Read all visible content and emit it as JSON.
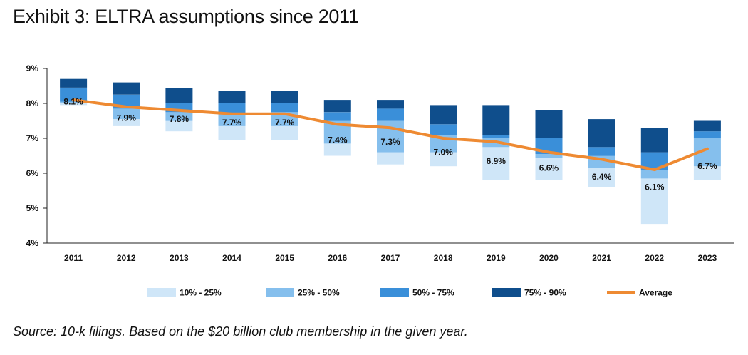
{
  "title": "Exhibit 3: ELTRA assumptions since 2011",
  "source": "Source: 10-k filings. Based on the $20 billion club membership in the given year.",
  "chart_data": {
    "type": "bar",
    "subtype": "stacked-percentile-range-with-line",
    "categories": [
      "2011",
      "2012",
      "2013",
      "2014",
      "2015",
      "2016",
      "2017",
      "2018",
      "2019",
      "2020",
      "2021",
      "2022",
      "2023"
    ],
    "series": [
      {
        "name": "10% - 25%",
        "color": "#cfe6f8",
        "range": [
          [
            7.95,
            8.0
          ],
          [
            7.35,
            7.55
          ],
          [
            7.2,
            7.5
          ],
          [
            6.95,
            7.35
          ],
          [
            6.95,
            7.35
          ],
          [
            6.5,
            6.85
          ],
          [
            6.25,
            6.6
          ],
          [
            6.2,
            6.6
          ],
          [
            5.8,
            6.75
          ],
          [
            5.8,
            6.45
          ],
          [
            5.6,
            6.15
          ],
          [
            4.55,
            5.85
          ],
          [
            5.8,
            6.2
          ]
        ]
      },
      {
        "name": "25% - 50%",
        "color": "#85bfed",
        "range": [
          [
            8.0,
            8.05
          ],
          [
            7.55,
            7.85
          ],
          [
            7.5,
            7.75
          ],
          [
            7.35,
            7.7
          ],
          [
            7.35,
            7.75
          ],
          [
            6.85,
            7.5
          ],
          [
            6.6,
            7.5
          ],
          [
            6.6,
            7.1
          ],
          [
            6.75,
            7.0
          ],
          [
            6.45,
            6.55
          ],
          [
            6.15,
            6.5
          ],
          [
            5.85,
            6.1
          ],
          [
            6.2,
            7.0
          ]
        ]
      },
      {
        "name": "50% - 75%",
        "color": "#3a8fd9",
        "range": [
          [
            8.05,
            8.45
          ],
          [
            7.85,
            8.25
          ],
          [
            7.75,
            8.0
          ],
          [
            7.7,
            8.0
          ],
          [
            7.75,
            8.0
          ],
          [
            7.5,
            7.75
          ],
          [
            7.5,
            7.85
          ],
          [
            7.1,
            7.4
          ],
          [
            7.0,
            7.1
          ],
          [
            6.55,
            7.0
          ],
          [
            6.5,
            6.75
          ],
          [
            6.1,
            6.6
          ],
          [
            7.0,
            7.2
          ]
        ]
      },
      {
        "name": "75% - 90%",
        "color": "#0f4e8c",
        "range": [
          [
            8.45,
            8.7
          ],
          [
            8.25,
            8.6
          ],
          [
            8.0,
            8.45
          ],
          [
            8.0,
            8.35
          ],
          [
            8.0,
            8.35
          ],
          [
            7.75,
            8.1
          ],
          [
            7.85,
            8.1
          ],
          [
            7.4,
            7.95
          ],
          [
            7.1,
            7.95
          ],
          [
            7.0,
            7.8
          ],
          [
            6.75,
            7.55
          ],
          [
            6.6,
            7.3
          ],
          [
            7.2,
            7.5
          ]
        ]
      }
    ],
    "average": {
      "name": "Average",
      "color": "#ee8a32",
      "values": [
        8.1,
        7.9,
        7.8,
        7.7,
        7.7,
        7.4,
        7.3,
        7.0,
        6.9,
        6.6,
        6.4,
        6.1,
        6.7
      ],
      "labels": [
        "8.1%",
        "7.9%",
        "7.8%",
        "7.7%",
        "7.7%",
        "7.4%",
        "7.3%",
        "7.0%",
        "6.9%",
        "6.6%",
        "6.4%",
        "6.1%",
        "6.7%"
      ],
      "label_values": [
        8.05,
        7.58,
        7.55,
        7.45,
        7.45,
        6.95,
        6.9,
        6.6,
        6.35,
        6.15,
        5.9,
        5.6,
        6.2
      ]
    },
    "yaxis": {
      "ylim": [
        4,
        9
      ],
      "ticks": [
        4,
        5,
        6,
        7,
        8,
        9
      ],
      "tick_labels": [
        "4%",
        "5%",
        "6%",
        "7%",
        "8%",
        "9%"
      ]
    },
    "grid": false,
    "legend_position": "bottom"
  }
}
